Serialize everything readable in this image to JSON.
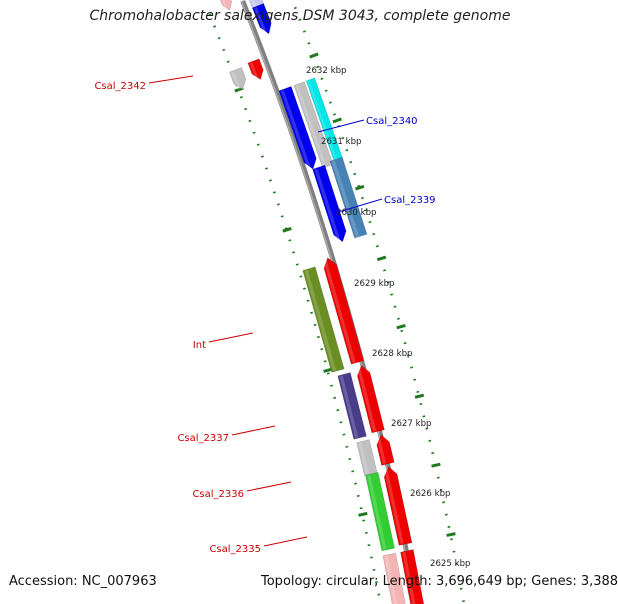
{
  "title": "Chromohalobacter salexigens DSM 3043, complete genome",
  "footer": {
    "accession": "Accession: NC_007963",
    "summary": "Topology: circular; Length: 3,696,649 bp; Genes: 3,388"
  },
  "colors": {
    "backbone": "#808080",
    "tick": "#1f7a1f",
    "ruler_text": "#222222",
    "label_forward": "#cc0000",
    "label_reverse": "#0000cc"
  },
  "ruler": [
    {
      "label": "2632 kbp"
    },
    {
      "label": "2631 kbp"
    },
    {
      "label": "2630 kbp"
    },
    {
      "label": "2629 kbp"
    },
    {
      "label": "2628 kbp"
    },
    {
      "label": "2627 kbp"
    },
    {
      "label": "2626 kbp"
    },
    {
      "label": "2625 kbp"
    }
  ],
  "gene_labels": [
    {
      "text": "Csal_2342",
      "strand": "forward"
    },
    {
      "text": "Csal_2340",
      "strand": "reverse"
    },
    {
      "text": "Csal_2339",
      "strand": "reverse"
    },
    {
      "text": "Int",
      "strand": "forward"
    },
    {
      "text": "Csal_2337",
      "strand": "forward"
    },
    {
      "text": "Csal_2336",
      "strand": "forward"
    },
    {
      "text": "Csal_2335",
      "strand": "forward"
    }
  ],
  "features": [
    {
      "name": "feature-top-lavender",
      "color": "#c8c8f0",
      "strand": "reverse"
    },
    {
      "name": "feature-top-blue",
      "color": "#0000ee",
      "strand": "reverse"
    },
    {
      "name": "feature-top-pink",
      "color": "#f4b4b4",
      "strand": "forward"
    },
    {
      "name": "feature-csal-2342-grey",
      "color": "#c0c0c0",
      "strand": "forward"
    },
    {
      "name": "feature-csal-2342-red",
      "color": "#ee0000",
      "strand": "forward"
    },
    {
      "name": "feature-csal-2340-blue",
      "color": "#0000ee",
      "strand": "reverse"
    },
    {
      "name": "feature-csal-2340-grey",
      "color": "#c0c0c0",
      "strand": "reverse"
    },
    {
      "name": "feature-csal-2340-cyan",
      "color": "#00e5e5",
      "strand": "reverse"
    },
    {
      "name": "feature-csal-2339-blue",
      "color": "#0000ee",
      "strand": "reverse"
    },
    {
      "name": "feature-csal-2339-steelblue",
      "color": "#4682b4",
      "strand": "reverse"
    },
    {
      "name": "feature-int-olive",
      "color": "#6b8e23",
      "strand": "forward"
    },
    {
      "name": "feature-int-red",
      "color": "#ee0000",
      "strand": "forward"
    },
    {
      "name": "feature-csal-2337-darkslate",
      "color": "#483d8b",
      "strand": "forward"
    },
    {
      "name": "feature-csal-2337-red",
      "color": "#ee0000",
      "strand": "forward"
    },
    {
      "name": "feature-csal-2336-grey",
      "color": "#c0c0c0",
      "strand": "forward"
    },
    {
      "name": "feature-csal-2336-red",
      "color": "#ee0000",
      "strand": "forward"
    },
    {
      "name": "feature-csal-2336-red-b",
      "color": "#ee0000",
      "strand": "forward"
    },
    {
      "name": "feature-csal-2335-green",
      "color": "#32cd32",
      "strand": "forward"
    },
    {
      "name": "feature-csal-2335-red",
      "color": "#ee0000",
      "strand": "forward"
    },
    {
      "name": "feature-bottom-pink",
      "color": "#f4b4b4",
      "strand": "forward"
    },
    {
      "name": "feature-bottom-red",
      "color": "#ee0000",
      "strand": "forward"
    }
  ]
}
